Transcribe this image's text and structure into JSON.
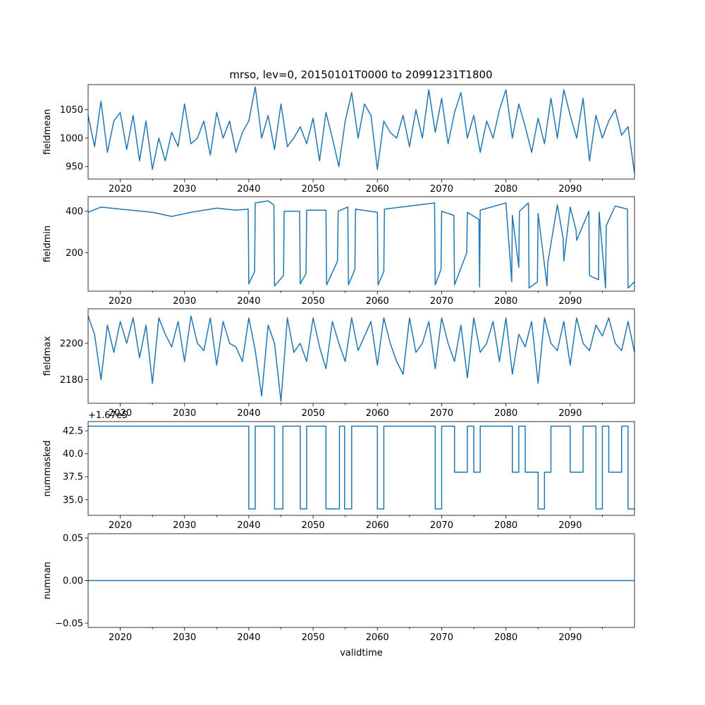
{
  "chart_data": [
    {
      "type": "line",
      "title": "mrso, lev=0, 20150101T0000 to 20991231T1800",
      "ylabel": "fieldmean",
      "xlabel": "",
      "xlim": [
        2015,
        2100
      ],
      "ylim": [
        928,
        1094
      ],
      "xticks": [
        "2020",
        "2030",
        "2040",
        "2050",
        "2060",
        "2070",
        "2080",
        "2090"
      ],
      "yticks": [
        950,
        1000,
        1050
      ],
      "ytick_labels": [
        "950",
        "1000",
        "1050"
      ],
      "offset_text": "",
      "x": [
        2015,
        2016,
        2017,
        2018,
        2019,
        2020,
        2021,
        2022,
        2023,
        2024,
        2025,
        2026,
        2027,
        2028,
        2029,
        2030,
        2031,
        2032,
        2033,
        2034,
        2035,
        2036,
        2037,
        2038,
        2039,
        2040,
        2041,
        2042,
        2043,
        2044,
        2045,
        2046,
        2047,
        2048,
        2049,
        2050,
        2051,
        2052,
        2053,
        2054,
        2055,
        2056,
        2057,
        2058,
        2059,
        2060,
        2061,
        2062,
        2063,
        2064,
        2065,
        2066,
        2067,
        2068,
        2069,
        2070,
        2071,
        2072,
        2073,
        2074,
        2075,
        2076,
        2077,
        2078,
        2079,
        2080,
        2081,
        2082,
        2083,
        2084,
        2085,
        2086,
        2087,
        2088,
        2089,
        2090,
        2091,
        2092,
        2093,
        2094,
        2095,
        2096,
        2097,
        2098,
        2099,
        2100
      ],
      "values": [
        1040,
        985,
        1065,
        975,
        1030,
        1045,
        980,
        1040,
        960,
        1030,
        945,
        1000,
        960,
        1010,
        985,
        1060,
        990,
        1000,
        1030,
        970,
        1045,
        1000,
        1030,
        975,
        1010,
        1030,
        1090,
        1000,
        1040,
        980,
        1060,
        985,
        1000,
        1020,
        990,
        1035,
        960,
        1045,
        1000,
        950,
        1030,
        1080,
        1000,
        1060,
        1040,
        945,
        1030,
        1010,
        1000,
        1040,
        985,
        1050,
        1000,
        1085,
        1010,
        1070,
        990,
        1045,
        1080,
        1000,
        1040,
        975,
        1030,
        1000,
        1050,
        1085,
        1000,
        1060,
        1020,
        975,
        1035,
        990,
        1070,
        1000,
        1085,
        1040,
        1000,
        1070,
        960,
        1040,
        1000,
        1030,
        1050,
        1005,
        1020,
        938
      ]
    },
    {
      "type": "line",
      "title": "",
      "ylabel": "fieldmin",
      "xlabel": "",
      "xlim": [
        2015,
        2100
      ],
      "ylim": [
        15,
        470
      ],
      "xticks": [
        "2020",
        "2030",
        "2040",
        "2050",
        "2060",
        "2070",
        "2080",
        "2090"
      ],
      "yticks": [
        200,
        400
      ],
      "ytick_labels": [
        "200",
        "400"
      ],
      "offset_text": "",
      "x": [
        2015,
        2017,
        2020,
        2025,
        2028,
        2031,
        2035,
        2038,
        2039.9,
        2040,
        2040.9,
        2041,
        2043,
        2043.9,
        2044,
        2045.4,
        2045.5,
        2047.9,
        2048,
        2048.9,
        2049,
        2052,
        2052.1,
        2053.8,
        2053.9,
        2055.4,
        2055.5,
        2056.5,
        2056.6,
        2060,
        2060.1,
        2061,
        2061.1,
        2065,
        2068.9,
        2069,
        2069.9,
        2070,
        2071.9,
        2072,
        2073.9,
        2074,
        2075.8,
        2075.9,
        2076,
        2080,
        2080.9,
        2081,
        2082,
        2082.1,
        2083.5,
        2083.6,
        2084.9,
        2085,
        2086.4,
        2086.5,
        2088,
        2088.9,
        2089,
        2090,
        2090.9,
        2091,
        2092.9,
        2093,
        2094.4,
        2094.5,
        2095.5,
        2095.6,
        2097,
        2098.9,
        2099,
        2100
      ],
      "values": [
        395,
        420,
        410,
        395,
        375,
        395,
        415,
        405,
        410,
        50,
        110,
        440,
        450,
        430,
        40,
        90,
        400,
        400,
        50,
        100,
        405,
        405,
        45,
        160,
        400,
        420,
        45,
        120,
        410,
        395,
        45,
        110,
        410,
        425,
        440,
        45,
        120,
        400,
        380,
        45,
        200,
        395,
        360,
        35,
        405,
        440,
        60,
        380,
        130,
        400,
        440,
        30,
        60,
        390,
        40,
        150,
        430,
        270,
        160,
        420,
        310,
        260,
        400,
        90,
        70,
        395,
        30,
        330,
        425,
        410,
        30,
        60
      ]
    },
    {
      "type": "line",
      "title": "",
      "ylabel": "fieldmax",
      "xlabel": "",
      "xlim": [
        2015,
        2100
      ],
      "ylim": [
        2167,
        2219
      ],
      "xticks": [
        "2020",
        "2030",
        "2040",
        "2050",
        "2060",
        "2070",
        "2080",
        "2090"
      ],
      "yticks": [
        2180,
        2200
      ],
      "ytick_labels": [
        "2180",
        "2200"
      ],
      "offset_text": "",
      "x": [
        2015,
        2016,
        2017,
        2018,
        2019,
        2020,
        2021,
        2022,
        2023,
        2024,
        2025,
        2026,
        2027,
        2028,
        2029,
        2030,
        2031,
        2032,
        2033,
        2034,
        2035,
        2036,
        2037,
        2038,
        2039,
        2040,
        2041,
        2042,
        2043,
        2044,
        2045,
        2046,
        2047,
        2048,
        2049,
        2050,
        2051,
        2052,
        2053,
        2054,
        2055,
        2056,
        2057,
        2058,
        2059,
        2060,
        2061,
        2062,
        2063,
        2064,
        2065,
        2066,
        2067,
        2068,
        2069,
        2070,
        2071,
        2072,
        2073,
        2074,
        2075,
        2076,
        2077,
        2078,
        2079,
        2080,
        2081,
        2082,
        2083,
        2084,
        2085,
        2086,
        2087,
        2088,
        2089,
        2090,
        2091,
        2092,
        2093,
        2094,
        2095,
        2096,
        2097,
        2098,
        2099,
        2100
      ],
      "values": [
        2215,
        2205,
        2180,
        2210,
        2195,
        2212,
        2200,
        2214,
        2192,
        2210,
        2178,
        2214,
        2205,
        2198,
        2212,
        2190,
        2215,
        2200,
        2196,
        2214,
        2188,
        2212,
        2200,
        2198,
        2190,
        2214,
        2196,
        2171,
        2210,
        2200,
        2168,
        2214,
        2195,
        2200,
        2190,
        2214,
        2198,
        2186,
        2212,
        2200,
        2190,
        2214,
        2196,
        2204,
        2212,
        2188,
        2214,
        2200,
        2190,
        2183,
        2214,
        2195,
        2200,
        2212,
        2186,
        2214,
        2200,
        2190,
        2210,
        2181,
        2214,
        2195,
        2200,
        2212,
        2190,
        2214,
        2183,
        2205,
        2198,
        2212,
        2178,
        2214,
        2200,
        2196,
        2212,
        2188,
        2214,
        2200,
        2196,
        2210,
        2204,
        2214,
        2200,
        2196,
        2212,
        2195
      ]
    },
    {
      "type": "line",
      "title": "",
      "ylabel": "nummasked",
      "xlabel": "",
      "xlim": [
        2015,
        2100
      ],
      "ylim": [
        33.3,
        43.5
      ],
      "xticks": [
        "2020",
        "2030",
        "2040",
        "2050",
        "2060",
        "2070",
        "2080",
        "2090"
      ],
      "yticks": [
        35.0,
        37.5,
        40.0,
        42.5
      ],
      "ytick_labels": [
        "35.0",
        "37.5",
        "40.0",
        "42.5"
      ],
      "offset_text": "+1.67e5",
      "x": [
        2015,
        2040,
        2040,
        2041,
        2041,
        2044,
        2044,
        2045.3,
        2045.3,
        2048,
        2048,
        2049,
        2049,
        2052,
        2052,
        2054.1,
        2054.1,
        2054.9,
        2054.9,
        2056,
        2056,
        2060,
        2060,
        2061,
        2061,
        2069,
        2069,
        2070,
        2070,
        2072,
        2072,
        2074,
        2074,
        2075,
        2075,
        2076,
        2076,
        2081,
        2081,
        2082,
        2082,
        2083,
        2083,
        2085,
        2085,
        2086,
        2086,
        2087,
        2087,
        2090,
        2090,
        2092,
        2092,
        2094,
        2094,
        2095,
        2095,
        2096,
        2096,
        2098,
        2098,
        2099,
        2099,
        2100
      ],
      "values": [
        43,
        43,
        34,
        34,
        43,
        43,
        34,
        34,
        43,
        43,
        34,
        34,
        43,
        43,
        34,
        34,
        43,
        43,
        34,
        34,
        43,
        43,
        34,
        34,
        43,
        43,
        34,
        34,
        43,
        43,
        38,
        38,
        43,
        43,
        38,
        38,
        43,
        43,
        38,
        38,
        43,
        43,
        38,
        38,
        34,
        34,
        38,
        38,
        43,
        43,
        38,
        38,
        43,
        43,
        34,
        34,
        43,
        43,
        38,
        38,
        43,
        43,
        34,
        34
      ]
    },
    {
      "type": "line",
      "title": "",
      "ylabel": "numnan",
      "xlabel": "validtime",
      "xlim": [
        2015,
        2100
      ],
      "ylim": [
        -0.055,
        0.055
      ],
      "xticks": [
        "2020",
        "2030",
        "2040",
        "2050",
        "2060",
        "2070",
        "2080",
        "2090"
      ],
      "yticks": [
        -0.05,
        0.0,
        0.05
      ],
      "ytick_labels": [
        "−0.05",
        "0.00",
        "0.05"
      ],
      "offset_text": "",
      "x": [
        2015,
        2100
      ],
      "values": [
        0,
        0
      ]
    }
  ],
  "colors": {
    "series": "#1f77b4",
    "axes": "#000000",
    "background": "#ffffff"
  }
}
